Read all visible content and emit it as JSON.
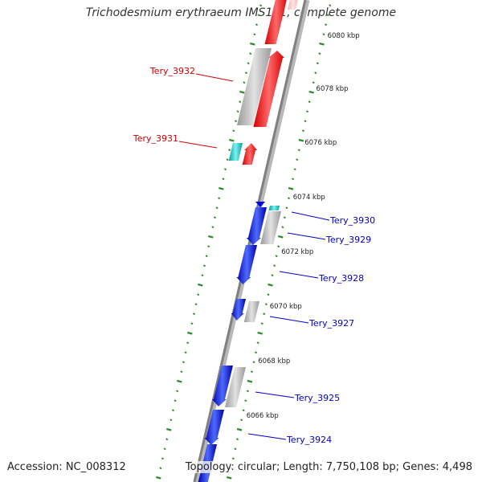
{
  "title": "Trichodesmium erythraeum IMS101, complete genome",
  "accession": "Accession: NC_008312",
  "topology": "Topology: circular; Length: 7,750,108 bp; Genes: 4,498",
  "colors": {
    "forward_cds": "#ff0000",
    "reverse_cds": "#0000ee",
    "forward_label": "#cc0000",
    "reverse_label": "#0000cc",
    "gray_feature": "#b0b0b0",
    "cyan_feature": "#00c8c8",
    "tick": "#2e8b2e",
    "backbone": "#808080"
  },
  "kbp_ticks": [
    "6066 kbp",
    "6068 kbp",
    "6070 kbp",
    "6072 kbp",
    "6074 kbp",
    "6076 kbp",
    "6078 kbp",
    "6080 kbp"
  ],
  "gene_labels": [
    {
      "name": "Tery_3932",
      "strand": "forward"
    },
    {
      "name": "Tery_3931",
      "strand": "forward"
    },
    {
      "name": "Tery_3930",
      "strand": "reverse"
    },
    {
      "name": "Tery_3929",
      "strand": "reverse"
    },
    {
      "name": "Tery_3928",
      "strand": "reverse"
    },
    {
      "name": "Tery_3927",
      "strand": "reverse"
    },
    {
      "name": "Tery_3925",
      "strand": "reverse"
    },
    {
      "name": "Tery_3924",
      "strand": "reverse"
    }
  ]
}
